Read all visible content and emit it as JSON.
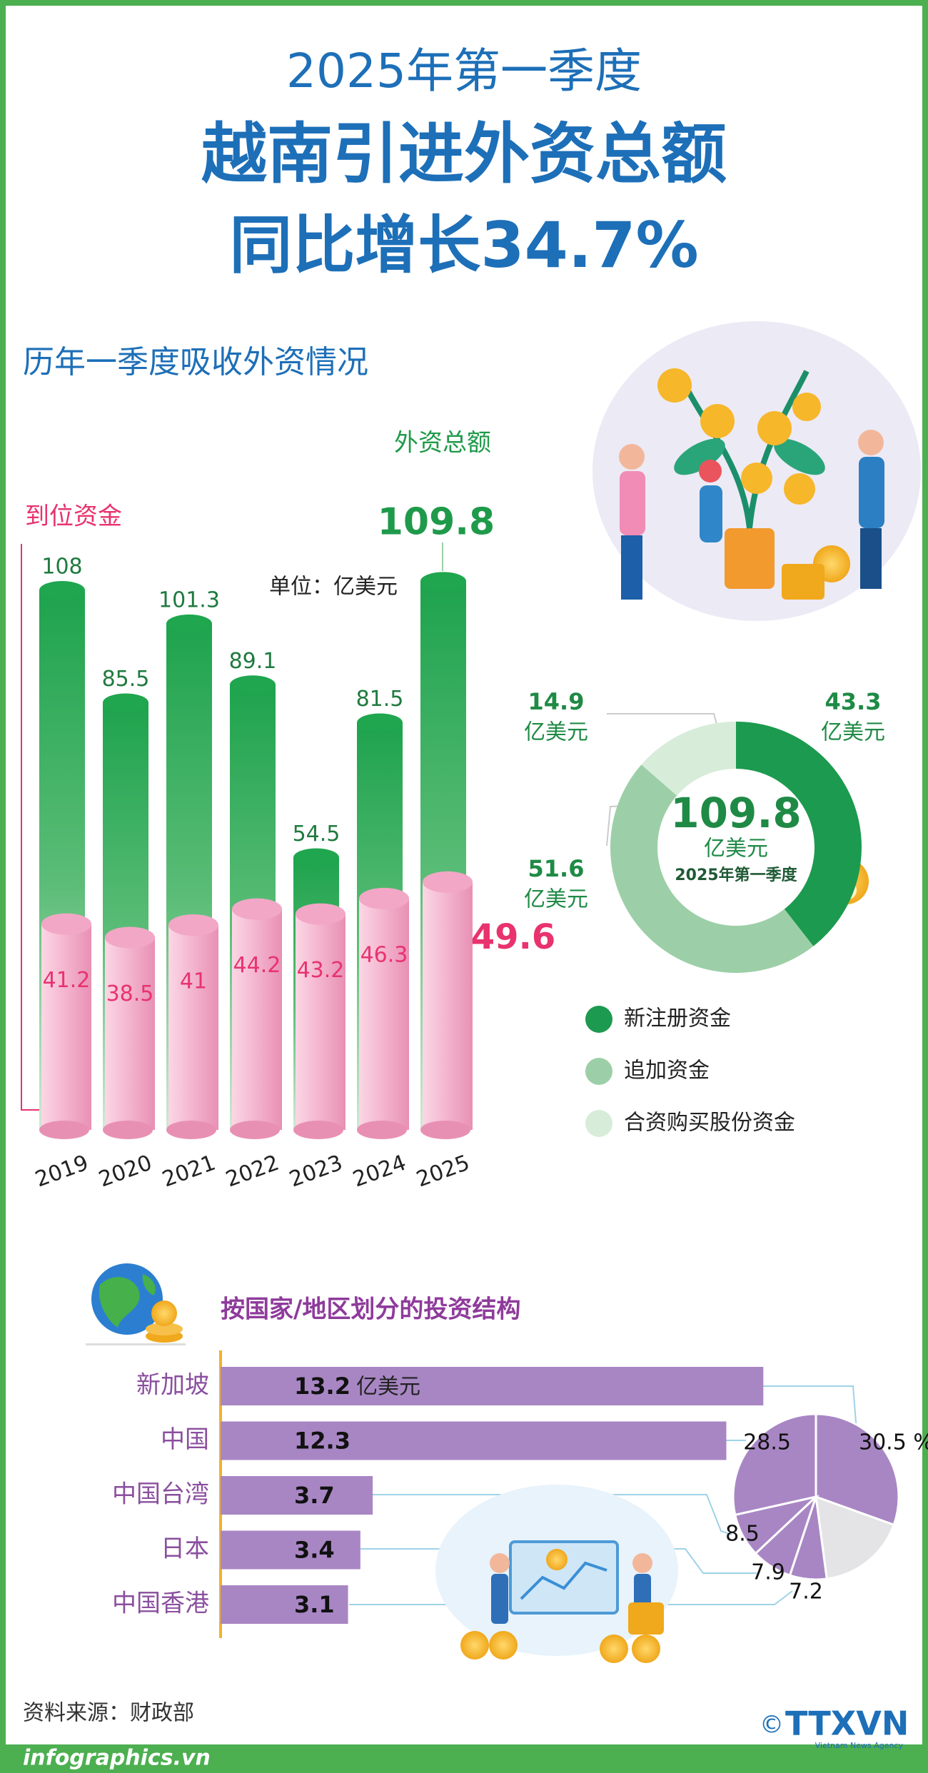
{
  "header": {
    "period": "2025年第一季度",
    "title": "越南引进外资总额",
    "subtitle": "同比增长34.7%"
  },
  "chart_data": [
    {
      "type": "cylinder-bar",
      "title": "历年一季度吸收外资情况",
      "unit": "单位：亿美元",
      "categories": [
        "2019",
        "2020",
        "2021",
        "2022",
        "2023",
        "2024",
        "2025"
      ],
      "series": [
        {
          "name": "外资总额",
          "color": "#1fa64f",
          "values": [
            108,
            85.5,
            101.3,
            89.1,
            54.5,
            81.5,
            109.8
          ]
        },
        {
          "name": "到位资金",
          "color": "#f2a7c6",
          "values": [
            41.2,
            38.5,
            41,
            44.2,
            43.2,
            46.3,
            49.6
          ]
        }
      ]
    },
    {
      "type": "donut",
      "center_value": 109.8,
      "center_unit": "亿美元",
      "center_label": "2025年第一季度",
      "unit": "亿美元",
      "categories": [
        "新注册资金",
        "追加资金",
        "合资购买股份资金"
      ],
      "values": [
        43.3,
        51.6,
        14.9
      ],
      "colors": [
        "#1c9a4f",
        "#9ccfa7",
        "#d7ecd9"
      ]
    },
    {
      "type": "hbar",
      "title": "按国家/地区划分的投资结构",
      "unit": "亿美元",
      "categories": [
        "新加坡",
        "中国",
        "中国台湾",
        "日本",
        "中国香港"
      ],
      "values": [
        13.2,
        12.3,
        3.7,
        3.4,
        3.1
      ],
      "color": "#a886c4"
    },
    {
      "type": "pie",
      "values": [
        30.5,
        17.4,
        7.2,
        7.9,
        8.5,
        28.5
      ],
      "value_labels": [
        "30.5 %",
        null,
        "7.2",
        "7.9",
        "8.5",
        "28.5"
      ],
      "colors": [
        "#a886c4",
        "#e4e4e6",
        "#a886c4",
        "#a886c4",
        "#a886c4",
        "#a886c4"
      ]
    }
  ],
  "footer": {
    "source": "资料来源：财政部",
    "site": "infographics.vn",
    "copyright": "©",
    "logo": "TTXVN",
    "agency": "Vietnam News Agency"
  }
}
